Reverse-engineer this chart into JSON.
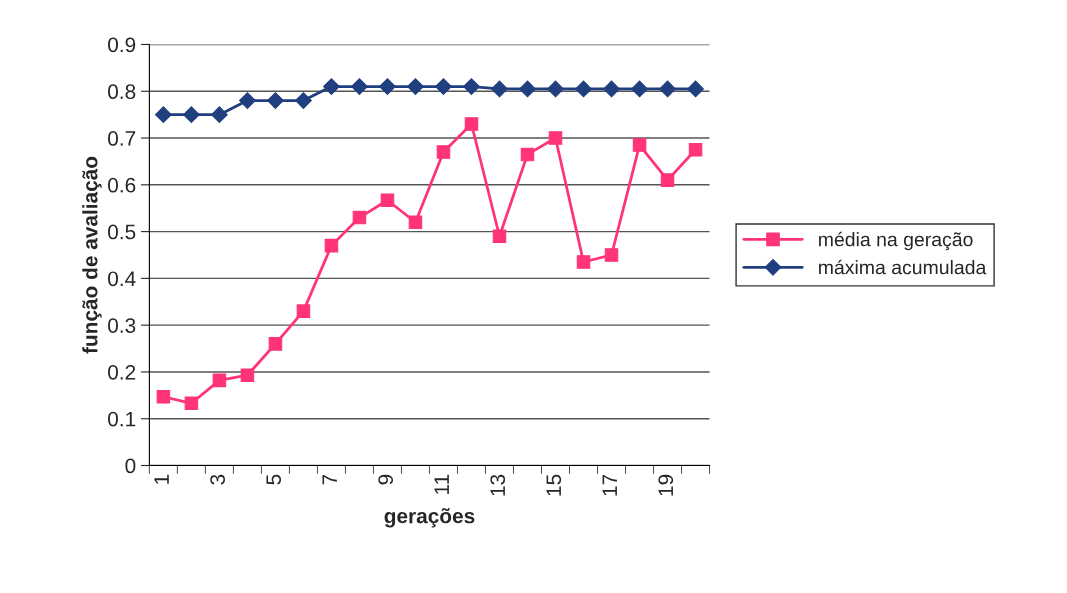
{
  "chart_data": {
    "type": "line",
    "xlabel": "gerações",
    "ylabel": "função de avaliação",
    "categories": [
      "1",
      null,
      "3",
      null,
      "5",
      null,
      "7",
      null,
      "9",
      null,
      "11",
      null,
      "13",
      null,
      "15",
      null,
      "17",
      null,
      "19",
      null
    ],
    "series": [
      {
        "name": "média na geração",
        "color": "#ff3377",
        "marker": "square",
        "values": [
          0.147,
          0.133,
          0.182,
          0.193,
          0.26,
          0.33,
          0.47,
          0.53,
          0.567,
          0.52,
          0.67,
          0.73,
          0.49,
          0.665,
          0.7,
          0.435,
          0.45,
          0.685,
          0.61,
          0.675
        ]
      },
      {
        "name": "máxima acumulada",
        "color": "#1f3f7f",
        "marker": "diamond",
        "values": [
          0.75,
          0.75,
          0.75,
          0.78,
          0.78,
          0.78,
          0.81,
          0.81,
          0.81,
          0.81,
          0.81,
          0.81,
          0.805,
          0.805,
          0.805,
          0.805,
          0.805,
          0.805,
          0.805,
          0.805
        ]
      }
    ],
    "ylim": [
      0,
      0.9
    ],
    "yticks": [
      0,
      0.1,
      0.2,
      0.3,
      0.4,
      0.5,
      0.6,
      0.7,
      0.8,
      0.9
    ],
    "grid": "y",
    "legend": "right",
    "line_style": "solid"
  }
}
